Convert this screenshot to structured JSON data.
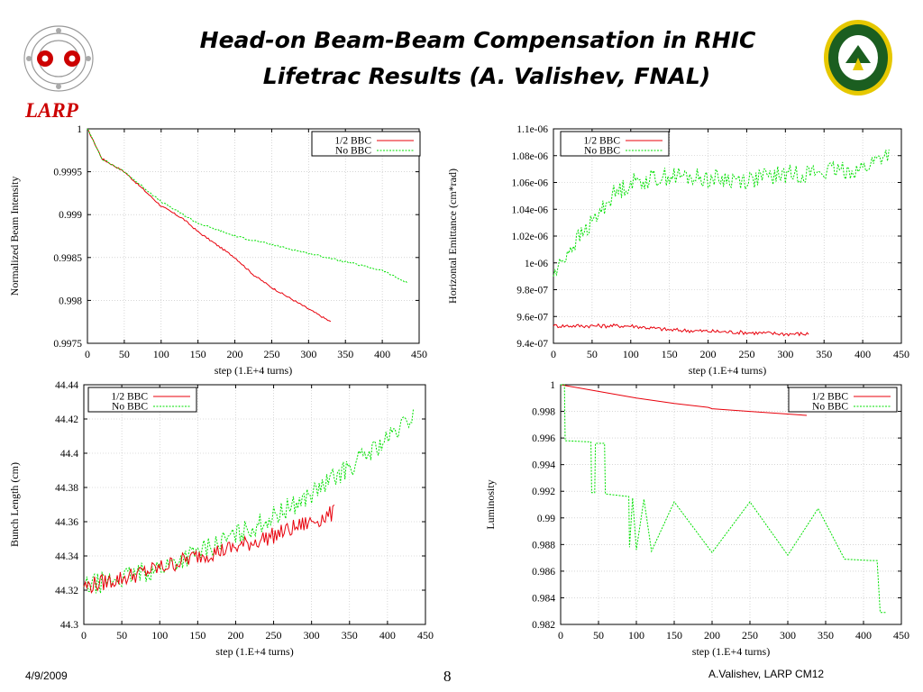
{
  "slide": {
    "title_line1": "Head-on Beam-Beam Compensation in RHIC",
    "title_line2": "Lifetrac Results (A. Valishev, FNAL)",
    "logo_text": "LARP",
    "footer_date": "4/9/2009",
    "footer_page": "8",
    "footer_author": "A.Valishev, LARP CM12"
  },
  "colors": {
    "bbc": "#e8000b",
    "nobbc": "#00e000",
    "larp": "#cc0000",
    "grid": "#bdbdbd"
  },
  "chart_data": [
    {
      "id": "intensity",
      "type": "line",
      "xlabel": "step (1.E+4 turns)",
      "ylabel": "Normalized Beam Intensity",
      "xlim": [
        0,
        450
      ],
      "ylim": [
        0.9975,
        1
      ],
      "xticks": [
        0,
        50,
        100,
        150,
        200,
        250,
        300,
        350,
        400,
        450
      ],
      "yticks": [
        0.9975,
        0.998,
        0.9985,
        0.999,
        0.9995,
        1
      ],
      "ytick_labels": [
        "0.9975",
        "0.998",
        "0.9985",
        "0.999",
        "0.9995",
        "1"
      ],
      "grid": true,
      "legend": "top-right",
      "series": [
        {
          "name": "1/2 BBC",
          "x": [
            0,
            20,
            50,
            100,
            130,
            150,
            175,
            200,
            225,
            250,
            270,
            300,
            330
          ],
          "y": [
            1.0,
            0.99965,
            0.9995,
            0.9991,
            0.99895,
            0.9988,
            0.99865,
            0.9985,
            0.9983,
            0.99815,
            0.99805,
            0.9979,
            0.99775
          ],
          "noise": 1e-05
        },
        {
          "name": "No BBC",
          "x": [
            0,
            20,
            50,
            100,
            150,
            200,
            250,
            300,
            350,
            400,
            435
          ],
          "y": [
            1.0,
            0.99965,
            0.9995,
            0.99915,
            0.9989,
            0.99875,
            0.99865,
            0.99855,
            0.99845,
            0.99835,
            0.9982
          ],
          "noise": 1e-05
        }
      ]
    },
    {
      "id": "emittance",
      "type": "line",
      "xlabel": "step (1.E+4 turns)",
      "ylabel": "Horizontal Emittance (cm*rad)",
      "xlim": [
        0,
        450
      ],
      "ylim": [
        9.4e-07,
        1.1e-06
      ],
      "xticks": [
        0,
        50,
        100,
        150,
        200,
        250,
        300,
        350,
        400,
        450
      ],
      "yticks": [
        9.4e-07,
        9.6e-07,
        9.8e-07,
        1e-06,
        1.02e-06,
        1.04e-06,
        1.06e-06,
        1.08e-06,
        1.1e-06
      ],
      "ytick_labels": [
        "9.4e-07",
        "9.6e-07",
        "9.8e-07",
        "1e-06",
        "1.02e-06",
        "1.04e-06",
        "1.06e-06",
        "1.08e-06",
        "1.1e-06"
      ],
      "grid": true,
      "legend": "top-left",
      "series": [
        {
          "name": "1/2 BBC",
          "x": [
            0,
            50,
            100,
            150,
            200,
            250,
            300,
            330
          ],
          "y": [
            9.53e-07,
            9.53e-07,
            9.53e-07,
            9.5e-07,
            9.49e-07,
            9.48e-07,
            9.47e-07,
            9.47e-07
          ],
          "noise": 1.5e-09
        },
        {
          "name": "No BBC",
          "x": [
            0,
            20,
            50,
            75,
            100,
            150,
            200,
            250,
            300,
            350,
            400,
            435
          ],
          "y": [
            9.9e-07,
            1.01e-06,
            1.03e-06,
            1.05e-06,
            1.06e-06,
            1.065e-06,
            1.063e-06,
            1.062e-06,
            1.066e-06,
            1.068e-06,
            1.07e-06,
            1.083e-06
          ],
          "noise": 7e-09
        }
      ]
    },
    {
      "id": "bunchlength",
      "type": "line",
      "xlabel": "step (1.E+4 turns)",
      "ylabel": "Bunch Length (cm)",
      "xlim": [
        0,
        450
      ],
      "ylim": [
        44.3,
        44.44
      ],
      "xticks": [
        0,
        50,
        100,
        150,
        200,
        250,
        300,
        350,
        400,
        450
      ],
      "yticks": [
        44.3,
        44.32,
        44.34,
        44.36,
        44.38,
        44.4,
        44.42,
        44.44
      ],
      "ytick_labels": [
        "44.3",
        "44.32",
        "44.34",
        "44.36",
        "44.38",
        "44.4",
        "44.42",
        "44.44"
      ],
      "grid": true,
      "legend": "top-left",
      "series": [
        {
          "name": "1/2 BBC",
          "x": [
            0,
            50,
            100,
            150,
            200,
            250,
            300,
            330
          ],
          "y": [
            44.322,
            44.327,
            44.333,
            44.34,
            44.345,
            44.352,
            44.36,
            44.365
          ],
          "noise": 0.005
        },
        {
          "name": "No BBC",
          "x": [
            0,
            50,
            100,
            150,
            200,
            250,
            300,
            350,
            400,
            435
          ],
          "y": [
            44.322,
            44.327,
            44.333,
            44.342,
            44.352,
            44.363,
            44.376,
            44.392,
            44.408,
            44.422
          ],
          "noise": 0.006
        }
      ]
    },
    {
      "id": "luminosity",
      "type": "line",
      "xlabel": "step (1.E+4 turns)",
      "ylabel": "Luminosity",
      "xlim": [
        0,
        450
      ],
      "ylim": [
        0.982,
        1
      ],
      "xticks": [
        0,
        50,
        100,
        150,
        200,
        250,
        300,
        350,
        400,
        450
      ],
      "yticks": [
        0.982,
        0.984,
        0.986,
        0.988,
        0.99,
        0.992,
        0.994,
        0.996,
        0.998,
        1
      ],
      "ytick_labels": [
        "0.982",
        "0.984",
        "0.986",
        "0.988",
        "0.99",
        "0.992",
        "0.994",
        "0.996",
        "0.998",
        "1"
      ],
      "grid": true,
      "legend": "top-right",
      "series": [
        {
          "name": "1/2 BBC",
          "x": [
            0,
            50,
            100,
            150,
            195,
            200,
            250,
            300,
            325
          ],
          "y": [
            1.0,
            0.9995,
            0.999,
            0.9986,
            0.9983,
            0.9982,
            0.998,
            0.9978,
            0.9977
          ],
          "noise": 0
        },
        {
          "name": "No BBC",
          "x": [
            0,
            5,
            6,
            40,
            41,
            45,
            46,
            58,
            59,
            90,
            91,
            95,
            100,
            110,
            120,
            150,
            200,
            250,
            300,
            340,
            375,
            410,
            418,
            422,
            430
          ],
          "y": [
            1.0,
            1.0,
            0.9958,
            0.9957,
            0.9919,
            0.9919,
            0.9956,
            0.9956,
            0.9918,
            0.9916,
            0.9878,
            0.9915,
            0.9876,
            0.9914,
            0.9875,
            0.9912,
            0.9874,
            0.9912,
            0.9872,
            0.9907,
            0.9869,
            0.9868,
            0.9868,
            0.9829,
            0.9829
          ],
          "noise": 0,
          "steps": true
        }
      ]
    }
  ]
}
